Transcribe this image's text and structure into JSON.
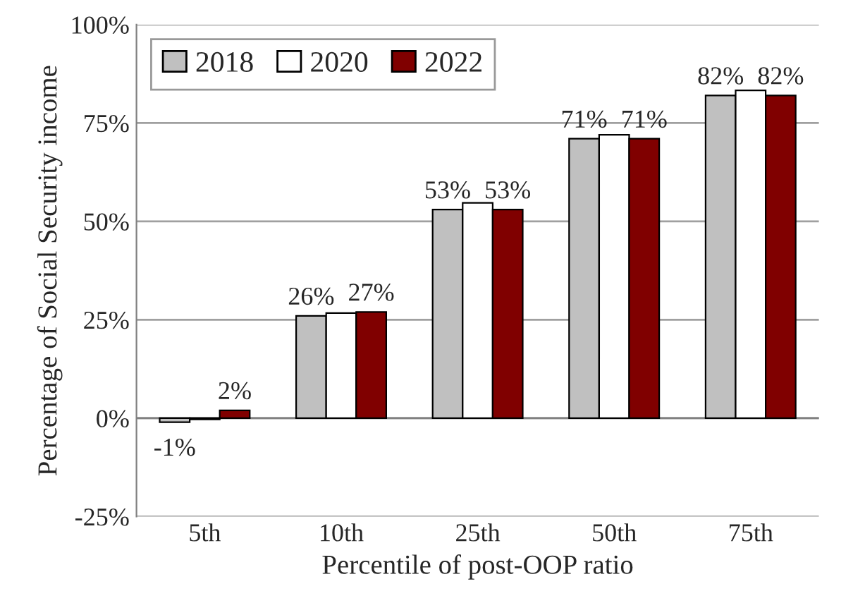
{
  "chart_data": {
    "type": "bar",
    "xlabel": "Percentile of post-OOP ratio",
    "ylabel": "Percentage of Social Security income",
    "categories": [
      "5th",
      "10th",
      "25th",
      "50th",
      "75th"
    ],
    "series": [
      {
        "name": "2018",
        "color": "#c0c0c0",
        "values": [
          -1,
          26,
          53,
          71,
          82
        ],
        "value_labels": [
          "-1%",
          "26%",
          "53%",
          "71%",
          "82%"
        ]
      },
      {
        "name": "2020",
        "color": "#ffffff",
        "values": [
          -0.3,
          26.7,
          54.7,
          72,
          83.3
        ]
      },
      {
        "name": "2022",
        "color": "#800000",
        "values": [
          2,
          27,
          53,
          71,
          82
        ],
        "value_labels": [
          "2%",
          "27%",
          "53%",
          "71%",
          "82%"
        ]
      }
    ],
    "ylim": [
      -25,
      100
    ],
    "yticks": [
      {
        "value": -25,
        "label": "-25%"
      },
      {
        "value": 0,
        "label": "0%"
      },
      {
        "value": 25,
        "label": "25%"
      },
      {
        "value": 50,
        "label": "50%"
      },
      {
        "value": 75,
        "label": "75%"
      },
      {
        "value": 100,
        "label": "100%"
      }
    ],
    "grid": "y",
    "legend": "top left"
  }
}
